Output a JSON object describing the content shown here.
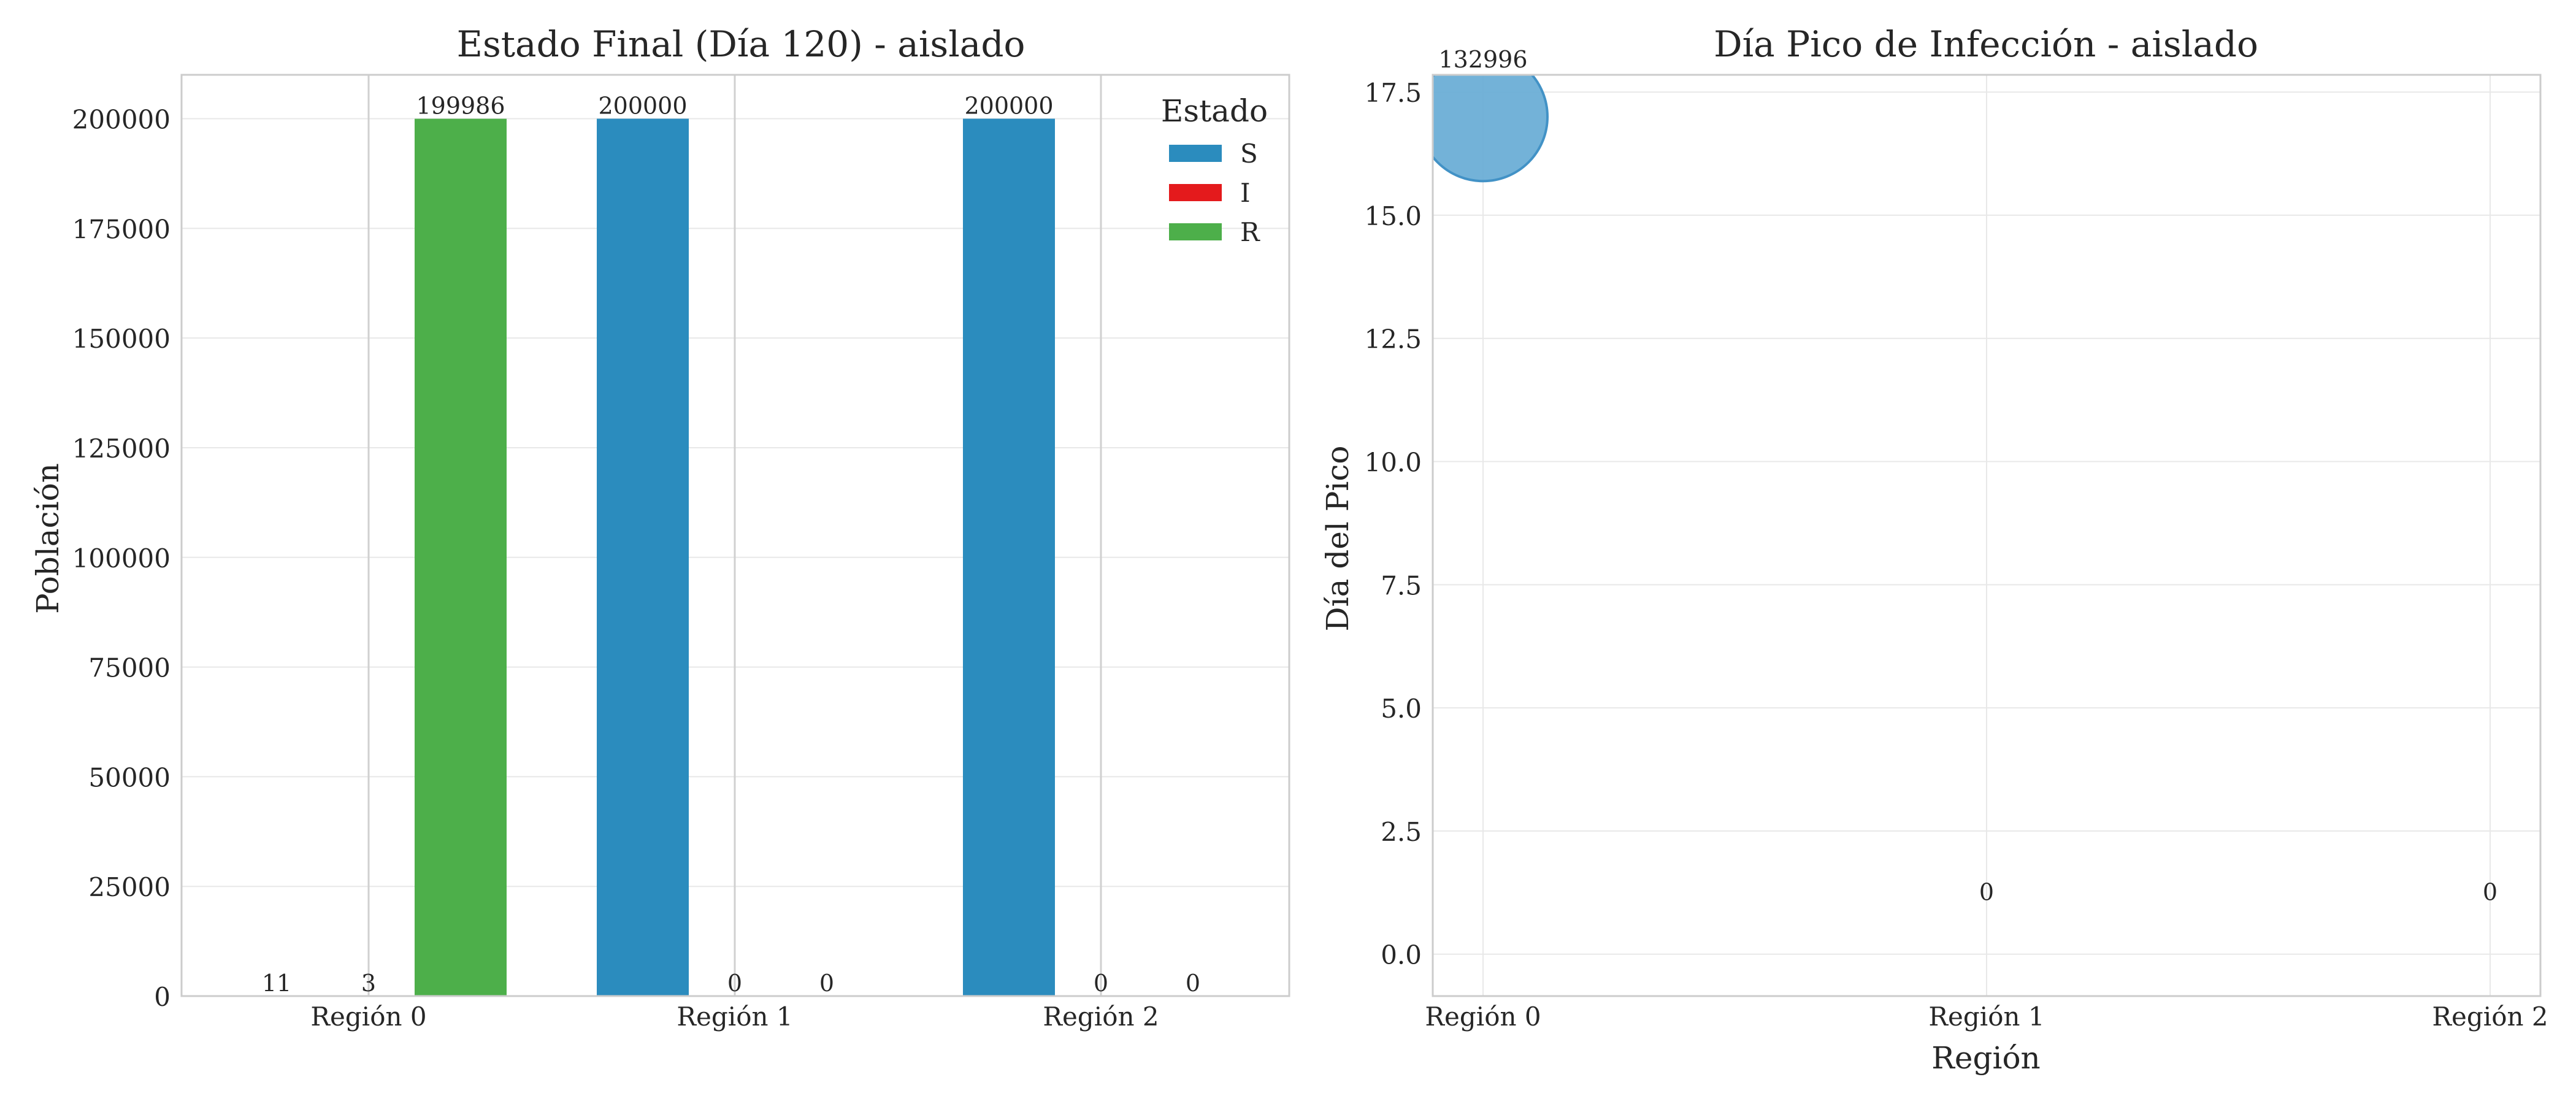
{
  "chart_data": [
    {
      "type": "bar",
      "title": "Estado Final (Día 120) - aislado",
      "xlabel": "",
      "ylabel": "Población",
      "categories": [
        "Región 0",
        "Región 1",
        "Región 2"
      ],
      "yticks": [
        "0",
        "25000",
        "50000",
        "75000",
        "100000",
        "125000",
        "150000",
        "175000",
        "200000"
      ],
      "ylim": [
        0,
        210000
      ],
      "legend_title": "Estado",
      "legend_position": "top-right",
      "grid": true,
      "series": [
        {
          "name": "S",
          "color": "#2b8cbe",
          "values": [
            11,
            200000,
            200000
          ],
          "labels": [
            "11",
            "200000",
            "200000"
          ]
        },
        {
          "name": "I",
          "color": "#e41a1c",
          "values": [
            3,
            0,
            0
          ],
          "labels": [
            "3",
            "0",
            "0"
          ]
        },
        {
          "name": "R",
          "color": "#4daf4a",
          "values": [
            199986,
            0,
            0
          ],
          "labels": [
            "199986",
            "0",
            "0"
          ]
        }
      ]
    },
    {
      "type": "scatter",
      "title": "Día Pico de Infección - aislado",
      "xlabel": "Región",
      "ylabel": "Día del Pico",
      "categories": [
        "Región 0",
        "Región 1",
        "Región 2"
      ],
      "yticks": [
        "0.0",
        "2.5",
        "5.0",
        "7.5",
        "10.0",
        "12.5",
        "15.0",
        "17.5"
      ],
      "ylim": [
        -0.85,
        17.85
      ],
      "grid": true,
      "color": "#6baed6",
      "points": [
        {
          "x": "Región 0",
          "y": 17,
          "peak": 132996,
          "label": "132996"
        },
        {
          "x": "Región 1",
          "y": 0,
          "peak": 0,
          "label": "0"
        },
        {
          "x": "Región 2",
          "y": 0,
          "peak": 0,
          "label": "0"
        }
      ]
    }
  ]
}
